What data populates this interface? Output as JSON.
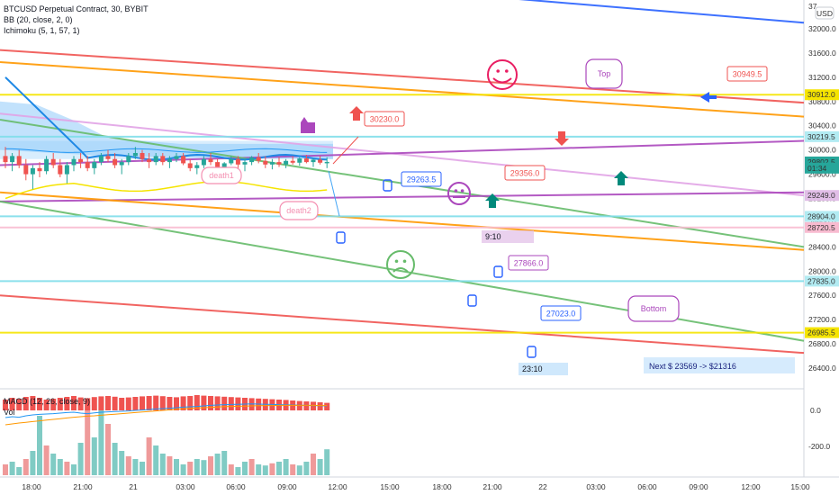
{
  "header": {
    "title": "BTCUSD Perpetual Contract, 30, BYBIT",
    "indicator_bb": "BB (20, close, 2, 0)",
    "indicator_ichimoku": "Ichimoku (5, 1, 57, 1)",
    "currency_badge": "USD"
  },
  "macd_pane": {
    "label": "MACD (12, 26, close, 9)",
    "sublabel": "Vol"
  },
  "colors": {
    "red": "#ef5350",
    "orange": "#ff9800",
    "yellow": "#f5e400",
    "purple": "#ab47bc",
    "green": "#66bb6a",
    "pink": "#e1a3e6",
    "blue": "#2962ff",
    "cyan": "#80deea",
    "teal": "#26a69a",
    "cloud": "#90caf9"
  },
  "chart_data": {
    "type": "candlestick",
    "symbol": "BTCUSD Perpetual Contract",
    "interval": "30",
    "exchange": "BYBIT",
    "price_ticks": [
      "32000.0",
      "31600.0",
      "31200.0",
      "30800.0",
      "30400.0",
      "30000.0",
      "29600.0",
      "29200.0",
      "28800.0",
      "28400.0",
      "28000.0",
      "27600.0",
      "27200.0",
      "26800.0",
      "26400.0"
    ],
    "price_top_label": "37",
    "macd_ticks": [
      "0.0",
      "-200.0"
    ],
    "time_ticks": [
      "18:00",
      "21:00",
      "21",
      "03:00",
      "06:00",
      "09:00",
      "12:00",
      "15:00",
      "18:00",
      "21:00",
      "22",
      "03:00",
      "06:00",
      "09:00",
      "12:00",
      "15:00"
    ],
    "price_badges": [
      {
        "label": "30912.0",
        "color": "#f5e400",
        "text_color": "#131722"
      },
      {
        "label": "30219.5",
        "color": "#b2ebf2",
        "text_color": "#131722"
      },
      {
        "label": "29802.5",
        "color": "#26a69a",
        "text_color": "#ffffff"
      },
      {
        "label": "01:34",
        "color": "#26a69a",
        "text_color": "#ffffff"
      },
      {
        "label": "29249.0",
        "color": "#e1bee7",
        "text_color": "#131722"
      },
      {
        "label": "28904.0",
        "color": "#b2ebf2",
        "text_color": "#131722"
      },
      {
        "label": "28720.5",
        "color": "#f8bbd0",
        "text_color": "#131722"
      },
      {
        "label": "27835.0",
        "color": "#b2ebf2",
        "text_color": "#131722"
      },
      {
        "label": "26985.5",
        "color": "#f5e400",
        "text_color": "#131722"
      }
    ],
    "candles": [
      [
        29900,
        30050,
        29700,
        29800
      ],
      [
        29800,
        29950,
        29650,
        29900
      ],
      [
        29900,
        30000,
        29700,
        29750
      ],
      [
        29750,
        29850,
        29500,
        29600
      ],
      [
        29600,
        29750,
        29350,
        29700
      ],
      [
        29700,
        29800,
        29550,
        29650
      ],
      [
        29650,
        29900,
        29600,
        29850
      ],
      [
        29850,
        29950,
        29700,
        29750
      ],
      [
        29750,
        29850,
        29550,
        29600
      ],
      [
        29600,
        29800,
        29450,
        29750
      ],
      [
        29750,
        29900,
        29650,
        29850
      ],
      [
        29850,
        29950,
        29700,
        29800
      ],
      [
        29800,
        29900,
        29650,
        29700
      ],
      [
        29700,
        29850,
        29600,
        29800
      ],
      [
        29800,
        29950,
        29750,
        29900
      ],
      [
        29900,
        30000,
        29800,
        29850
      ],
      [
        29850,
        29950,
        29700,
        29750
      ],
      [
        29750,
        29850,
        29600,
        29800
      ],
      [
        29800,
        29950,
        29750,
        29900
      ],
      [
        29900,
        30050,
        29850,
        29950
      ],
      [
        29950,
        30000,
        29800,
        29850
      ],
      [
        29850,
        29950,
        29700,
        29800
      ],
      [
        29800,
        29950,
        29750,
        29900
      ],
      [
        29900,
        29950,
        29750,
        29800
      ],
      [
        29800,
        29900,
        29700,
        29850
      ],
      [
        29850,
        29950,
        29800,
        29900
      ],
      [
        29900,
        29950,
        29750,
        29780
      ],
      [
        29780,
        29850,
        29650,
        29700
      ],
      [
        29700,
        29800,
        29600,
        29750
      ],
      [
        29750,
        29900,
        29700,
        29850
      ],
      [
        29850,
        29950,
        29750,
        29800
      ],
      [
        29800,
        29850,
        29650,
        29700
      ],
      [
        29700,
        29800,
        29600,
        29780
      ],
      [
        29780,
        29900,
        29750,
        29850
      ],
      [
        29850,
        29900,
        29700,
        29760
      ],
      [
        29760,
        29850,
        29650,
        29800
      ],
      [
        29800,
        29900,
        29750,
        29880
      ],
      [
        29880,
        29950,
        29780,
        29820
      ],
      [
        29820,
        29900,
        29700,
        29760
      ],
      [
        29760,
        29850,
        29680,
        29800
      ],
      [
        29800,
        29880,
        29720,
        29760
      ],
      [
        29760,
        29850,
        29700,
        29820
      ],
      [
        29820,
        29900,
        29760,
        29790
      ],
      [
        29790,
        29880,
        29740,
        29860
      ],
      [
        29860,
        29920,
        29780,
        29800
      ],
      [
        29800,
        29860,
        29720,
        29840
      ],
      [
        29840,
        29900,
        29760,
        29790
      ],
      [
        29790,
        29880,
        29700,
        29803
      ]
    ],
    "trendlines": [
      {
        "name": "",
        "color": "#2962ff",
        "p1": [
          0,
          33200
        ],
        "p2": [
          932,
          32100
        ]
      },
      {
        "name": "",
        "color": "#ef5350",
        "p1": [
          0,
          31650
        ],
        "p2": [
          932,
          30780
        ]
      },
      {
        "name": "",
        "color": "#ff9800",
        "p1": [
          0,
          31450
        ],
        "p2": [
          932,
          30550
        ]
      },
      {
        "name": "",
        "color": "#f5e400",
        "p1": [
          0,
          30912
        ],
        "p2": [
          932,
          30912
        ]
      },
      {
        "name": "",
        "color": "#e1a3e6",
        "p1": [
          0,
          30600
        ],
        "p2": [
          932,
          29250
        ]
      },
      {
        "name": "",
        "color": "#ab47bc",
        "p1": [
          0,
          29750
        ],
        "p2": [
          932,
          30150
        ]
      },
      {
        "name": "",
        "color": "#66bb6a",
        "p1": [
          0,
          30500
        ],
        "p2": [
          932,
          28400
        ]
      },
      {
        "name": "",
        "color": "#ab47bc",
        "p1": [
          0,
          29150
        ],
        "p2": [
          932,
          29300
        ]
      },
      {
        "name": "",
        "color": "#ff9800",
        "p1": [
          0,
          29300
        ],
        "p2": [
          932,
          28350
        ]
      },
      {
        "name": "",
        "color": "#66bb6a",
        "p1": [
          0,
          29150
        ],
        "p2": [
          932,
          26850
        ]
      },
      {
        "name": "",
        "color": "#ef5350",
        "p1": [
          0,
          27600
        ],
        "p2": [
          932,
          26650
        ]
      },
      {
        "name": "",
        "color": "#f5e400",
        "p1": [
          0,
          26985.5
        ],
        "p2": [
          932,
          26985.5
        ]
      },
      {
        "name": "",
        "color": "#80deea",
        "p1": [
          0,
          30219.5
        ],
        "p2": [
          932,
          30219.5
        ]
      },
      {
        "name": "",
        "color": "#80deea",
        "p1": [
          0,
          28904
        ],
        "p2": [
          932,
          28904
        ]
      },
      {
        "name": "",
        "color": "#f8bbd0",
        "p1": [
          0,
          28720.5
        ],
        "p2": [
          932,
          28720.5
        ]
      },
      {
        "name": "",
        "color": "#80deea",
        "p1": [
          0,
          27835
        ],
        "p2": [
          932,
          27835
        ]
      }
    ],
    "price_tags": [
      {
        "text": "30949.5",
        "color": "#ef5350"
      },
      {
        "text": "30230.0",
        "color": "#ef5350"
      },
      {
        "text": "29263.5",
        "color": "#2962ff"
      },
      {
        "text": "29356.0",
        "color": "#ef5350"
      },
      {
        "text": "27866.0",
        "color": "#ab47bc"
      },
      {
        "text": "27023.0",
        "color": "#2962ff"
      }
    ],
    "callouts": [
      {
        "text": "Top",
        "color": "#ab47bc"
      },
      {
        "text": "Bottom",
        "color": "#ab47bc"
      },
      {
        "text": "death1",
        "color": "#f48fb1"
      },
      {
        "text": "death2",
        "color": "#f48fb1"
      }
    ],
    "time_boxes": [
      {
        "text": "9:10",
        "color": "#e1bee7"
      },
      {
        "text": "23:10",
        "color": "#bbdefb"
      }
    ],
    "note": "Next $ 23569 -> $21316",
    "macd_hist": [
      60,
      70,
      65,
      75,
      80,
      70,
      60,
      65,
      70,
      75,
      80,
      72,
      68,
      74,
      78,
      80,
      76,
      70,
      72,
      75,
      78,
      80,
      82,
      79,
      75,
      73,
      78,
      80,
      85,
      82,
      80,
      78,
      76,
      74,
      72,
      70,
      68,
      66,
      64,
      62,
      60,
      58,
      55,
      52,
      50,
      48,
      45,
      42
    ],
    "macd_line": [
      -40,
      -35,
      -38,
      -30,
      -25,
      -22,
      -20,
      -18,
      -15,
      -12,
      -10,
      -15,
      -18,
      -14,
      -10,
      -8,
      -6,
      -5,
      -3,
      0,
      2,
      5,
      8,
      10,
      12,
      15,
      18,
      20,
      22,
      25,
      28,
      30,
      32,
      33,
      34,
      35,
      36,
      35,
      34,
      33,
      32,
      31,
      30,
      29,
      28,
      27,
      26,
      25
    ],
    "macd_signal": [
      -80,
      -75,
      -70,
      -66,
      -62,
      -58,
      -54,
      -50,
      -46,
      -42,
      -38,
      -35,
      -32,
      -30,
      -27,
      -24,
      -21,
      -18,
      -15,
      -12,
      -9,
      -6,
      -3,
      0,
      3,
      6,
      9,
      11,
      13,
      15,
      17,
      19,
      21,
      22,
      23,
      24,
      25,
      26,
      27,
      27,
      28,
      28,
      28,
      28,
      28,
      28,
      27,
      27
    ],
    "volume": [
      20,
      25,
      15,
      30,
      45,
      110,
      55,
      40,
      30,
      25,
      20,
      60,
      130,
      70,
      140,
      95,
      60,
      45,
      35,
      30,
      25,
      70,
      55,
      40,
      35,
      30,
      20,
      25,
      30,
      28,
      35,
      40,
      45,
      20,
      15,
      25,
      30,
      20,
      18,
      22,
      25,
      30,
      20,
      18,
      25,
      40,
      30,
      48
    ]
  }
}
